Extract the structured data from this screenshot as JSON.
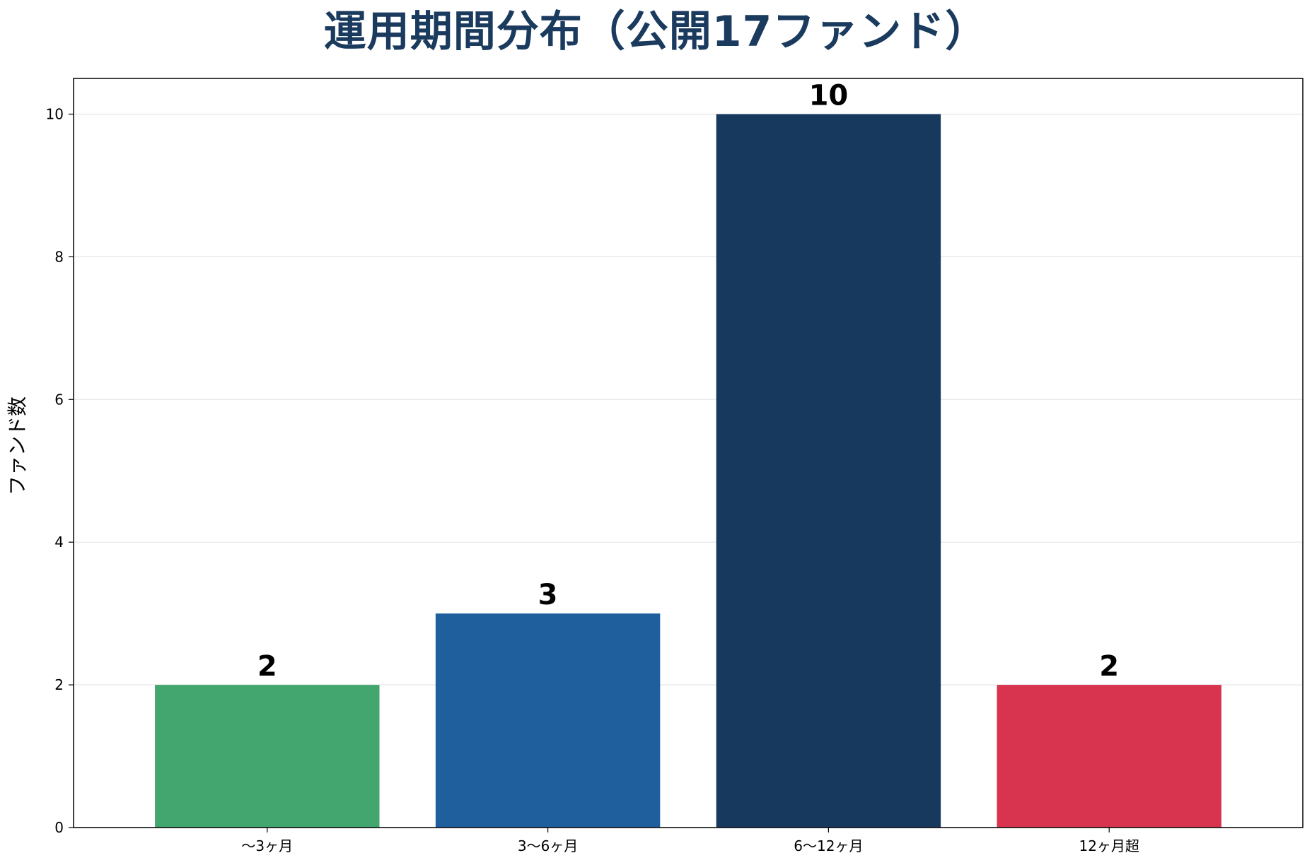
{
  "chart_data": {
    "type": "bar",
    "title": "運用期間分布（公開17ファンド）",
    "xlabel": "",
    "ylabel": "ファンド数",
    "categories": [
      "〜3ヶ月",
      "3〜6ヶ月",
      "6〜12ヶ月",
      "12ヶ月超"
    ],
    "values": [
      2,
      3,
      10,
      2
    ],
    "data_labels": [
      "2",
      "3",
      "10",
      "2"
    ],
    "colors": [
      "#43a66e",
      "#1f5f9e",
      "#18395e",
      "#d8344f"
    ],
    "ylim": [
      0,
      10.5
    ],
    "yticks": [
      0,
      2,
      4,
      6,
      8,
      10
    ],
    "ytick_labels": [
      "0",
      "2",
      "4",
      "6",
      "8",
      "10"
    ],
    "grid": "horizontal",
    "title_color": "#1a3a5e"
  }
}
